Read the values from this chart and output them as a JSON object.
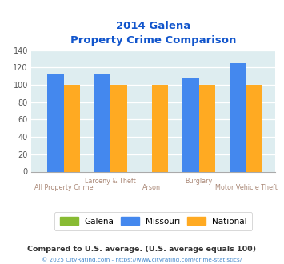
{
  "title_line1": "2014 Galena",
  "title_line2": "Property Crime Comparison",
  "groups": [
    {
      "label_top": "",
      "label_bot": "All Property Crime",
      "galena": 0,
      "missouri": 113,
      "national": 100
    },
    {
      "label_top": "Larceny & Theft",
      "label_bot": "",
      "galena": 0,
      "missouri": 113,
      "national": 100
    },
    {
      "label_top": "",
      "label_bot": "Arson",
      "galena": 0,
      "missouri": 0,
      "national": 100
    },
    {
      "label_top": "Burglary",
      "label_bot": "",
      "galena": 0,
      "missouri": 108,
      "national": 100
    },
    {
      "label_top": "",
      "label_bot": "Motor Vehicle Theft",
      "galena": 0,
      "missouri": 125,
      "national": 100
    }
  ],
  "galena_color": "#88bb33",
  "missouri_color": "#4488ee",
  "national_color": "#ffaa22",
  "background_color": "#deedf0",
  "ylim": [
    0,
    140
  ],
  "yticks": [
    0,
    20,
    40,
    60,
    80,
    100,
    120,
    140
  ],
  "title_color": "#1155cc",
  "xlabel_top_color": "#aa8877",
  "xlabel_bot_color": "#aa8877",
  "footer_text": "Compared to U.S. average. (U.S. average equals 100)",
  "copyright_text": "© 2025 CityRating.com - https://www.cityrating.com/crime-statistics/",
  "bar_width": 0.28,
  "x_positions": [
    0.55,
    1.35,
    2.05,
    2.85,
    3.65
  ]
}
